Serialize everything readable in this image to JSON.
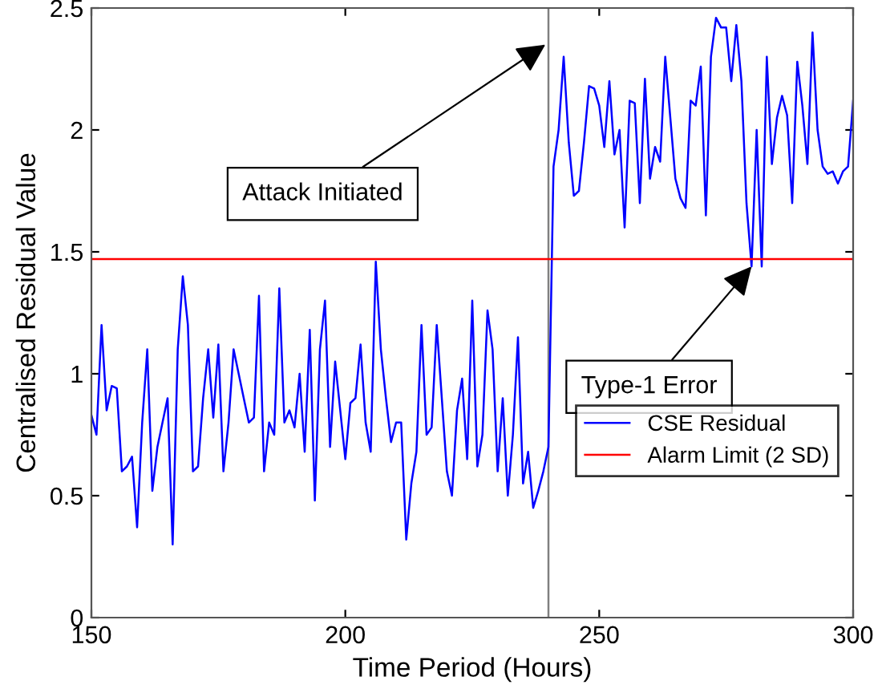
{
  "chart_data": {
    "type": "line",
    "xlabel": "Time Period (Hours)",
    "ylabel": "Centralised Residual Value",
    "xlim": [
      150,
      300
    ],
    "xticks": [
      150,
      200,
      250,
      300
    ],
    "ylim": [
      0,
      2.5
    ],
    "yticks": [
      0,
      0.5,
      1,
      1.5,
      2,
      2.5
    ],
    "grid": false,
    "legend": "right",
    "series": [
      {
        "name": "CSE Residual",
        "color": "#0000ff",
        "x": [
          150,
          151,
          152,
          153,
          154,
          155,
          156,
          157,
          158,
          159,
          160,
          161,
          162,
          163,
          164,
          165,
          166,
          167,
          168,
          169,
          170,
          171,
          172,
          173,
          174,
          175,
          176,
          177,
          178,
          179,
          180,
          181,
          182,
          183,
          184,
          185,
          186,
          187,
          188,
          189,
          190,
          191,
          192,
          193,
          194,
          195,
          196,
          197,
          198,
          199,
          200,
          201,
          202,
          203,
          204,
          205,
          206,
          207,
          208,
          209,
          210,
          211,
          212,
          213,
          214,
          215,
          216,
          217,
          218,
          219,
          220,
          221,
          222,
          223,
          224,
          225,
          226,
          227,
          228,
          229,
          230,
          231,
          232,
          233,
          234,
          235,
          236,
          237,
          238,
          239,
          240,
          241,
          242,
          243,
          244,
          245,
          246,
          247,
          248,
          249,
          250,
          251,
          252,
          253,
          254,
          255,
          256,
          257,
          258,
          259,
          260,
          261,
          262,
          263,
          264,
          265,
          266,
          267,
          268,
          269,
          270,
          271,
          272,
          273,
          274,
          275,
          276,
          277,
          278,
          279,
          280,
          281,
          282,
          283,
          284,
          285,
          286,
          287,
          288,
          289,
          290,
          291,
          292,
          293,
          294,
          295,
          296,
          297,
          298,
          299,
          300
        ],
        "values": [
          0.83,
          0.75,
          1.2,
          0.85,
          0.95,
          0.94,
          0.6,
          0.62,
          0.66,
          0.37,
          0.8,
          1.1,
          0.52,
          0.7,
          0.8,
          0.9,
          0.3,
          1.1,
          1.4,
          1.2,
          0.6,
          0.62,
          0.9,
          1.1,
          0.82,
          1.12,
          0.6,
          0.8,
          1.1,
          1.0,
          0.9,
          0.8,
          0.82,
          1.32,
          0.6,
          0.8,
          0.75,
          1.35,
          0.8,
          0.85,
          0.78,
          1.0,
          0.68,
          1.18,
          0.48,
          1.1,
          1.3,
          0.7,
          1.05,
          0.85,
          0.65,
          0.88,
          0.9,
          1.12,
          0.8,
          0.68,
          1.46,
          1.1,
          0.9,
          0.72,
          0.8,
          0.8,
          0.32,
          0.55,
          0.68,
          1.2,
          0.75,
          0.78,
          1.2,
          0.9,
          0.6,
          0.5,
          0.85,
          0.98,
          0.65,
          1.3,
          0.62,
          0.75,
          1.26,
          1.1,
          0.6,
          0.9,
          0.5,
          0.75,
          1.15,
          0.55,
          0.68,
          0.45,
          0.52,
          0.6,
          0.7,
          1.85,
          2.0,
          2.3,
          1.95,
          1.73,
          1.75,
          1.95,
          2.18,
          2.17,
          2.1,
          1.93,
          2.2,
          1.9,
          2.0,
          1.6,
          2.12,
          2.11,
          1.7,
          2.21,
          1.8,
          1.93,
          1.87,
          2.3,
          2.05,
          1.8,
          1.72,
          1.68,
          2.12,
          2.1,
          2.26,
          1.65,
          2.3,
          2.46,
          2.42,
          2.42,
          2.2,
          2.43,
          2.2,
          1.7,
          1.44,
          2.0,
          1.44,
          2.3,
          1.86,
          2.05,
          2.14,
          2.06,
          1.7,
          2.28,
          2.1,
          1.86,
          2.4,
          2.0,
          1.85,
          1.82,
          1.83,
          1.78,
          1.83,
          1.85,
          2.12
        ]
      },
      {
        "name": "Alarm Limit (2 SD)",
        "color": "#ff0000",
        "x": [
          150,
          300
        ],
        "values": [
          1.47,
          1.47
        ]
      }
    ],
    "ref_lines": [
      {
        "axis": "x",
        "value": 240,
        "color": "#808080"
      }
    ],
    "annotations": [
      {
        "text": "Attack Initiated",
        "x": 239.4,
        "y": 2.35
      },
      {
        "text": "Type-1 Error",
        "x": 280,
        "y": 1.44
      }
    ]
  }
}
